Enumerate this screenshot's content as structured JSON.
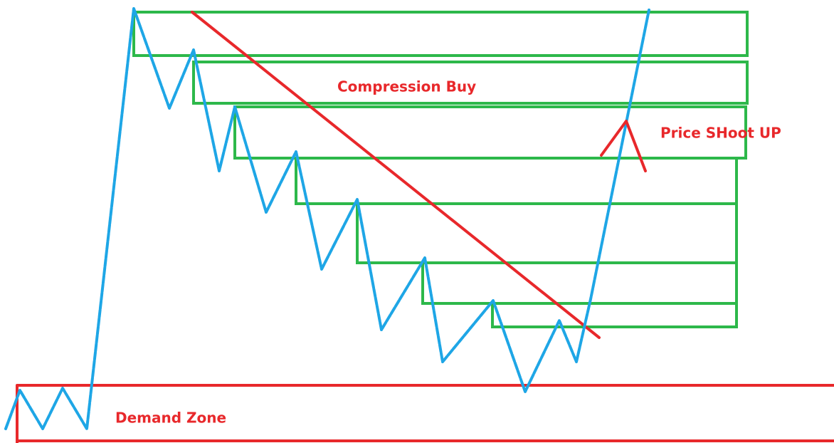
{
  "labels": {
    "compression": "Compression Buy",
    "shoot": "Price SHoot UP",
    "demand": "Demand Zone"
  }
}
